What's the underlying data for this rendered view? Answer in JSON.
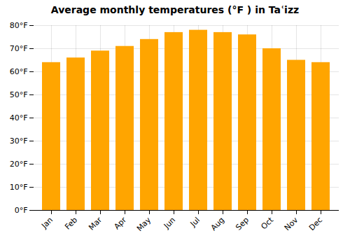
{
  "chart_data": {
    "type": "bar",
    "title": "Average monthly temperatures (°F ) in Taʿizz",
    "categories": [
      "Jan",
      "Feb",
      "Mar",
      "Apr",
      "May",
      "Jun",
      "Jul",
      "Aug",
      "Sep",
      "Oct",
      "Nov",
      "Dec"
    ],
    "values": [
      64,
      66,
      69,
      71,
      74,
      77,
      78,
      77,
      76,
      70,
      65,
      64
    ],
    "color": "#FFA500",
    "ylim": [
      0,
      80
    ],
    "yticks": [
      {
        "value": 0,
        "label": "0°F"
      },
      {
        "value": 10,
        "label": "10°F"
      },
      {
        "value": 20,
        "label": "20°F"
      },
      {
        "value": 30,
        "label": "30°F"
      },
      {
        "value": 40,
        "label": "40°F"
      },
      {
        "value": 50,
        "label": "50°F"
      },
      {
        "value": 60,
        "label": "60°F"
      },
      {
        "value": 70,
        "label": "70°F"
      },
      {
        "value": 80,
        "label": "80°F"
      }
    ],
    "grid": true
  }
}
